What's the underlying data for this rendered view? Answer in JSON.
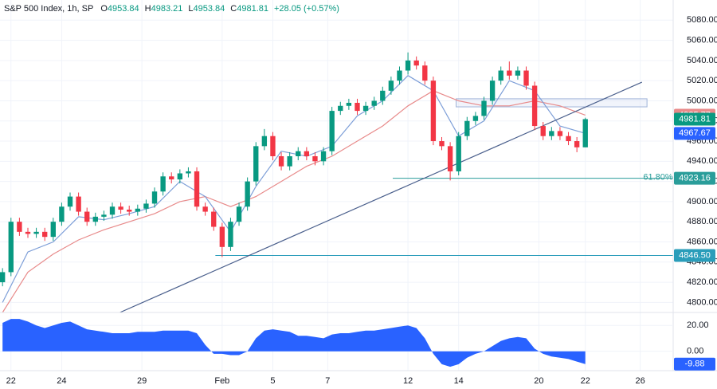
{
  "chart_data": [
    {
      "type": "candlestick",
      "title": "S&P 500 Index, 1h, SP",
      "ohlc_letters": [
        "O",
        "H",
        "L",
        "C"
      ],
      "change": "+28.05 (+0.57%)",
      "up_color": "#089981",
      "down_color": "#f23645",
      "open": [
        4820,
        4830,
        4880,
        4870,
        4868,
        4870,
        4865,
        4880,
        4895,
        4905,
        4890,
        4880,
        4885,
        4887,
        4895,
        4892,
        4890,
        4893,
        4898,
        4910,
        4925,
        4922,
        4928,
        4930,
        4895,
        4890,
        4875,
        4855,
        4880,
        4895,
        4920,
        4955,
        4965,
        4945,
        4935,
        4945,
        4950,
        4945,
        4940,
        4950,
        4990,
        4995,
        4998,
        4990,
        4995,
        5000,
        5010,
        5020,
        5030,
        5040,
        5035,
        5020,
        4960,
        4955,
        4930,
        4965,
        4980,
        4985,
        5000,
        5020,
        5030,
        5025,
        5030,
        5015,
        4975,
        4965,
        4970,
        4965,
        4960,
        4953.84
      ],
      "high": [
        4834,
        4884,
        4884,
        4874,
        4874,
        4874,
        4884,
        4899,
        4909,
        4909,
        4894,
        4889,
        4891,
        4899,
        4899,
        4896,
        4897,
        4902,
        4914,
        4929,
        4929,
        4932,
        4934,
        4934,
        4899,
        4894,
        4879,
        4884,
        4899,
        4924,
        4959,
        4972,
        4969,
        4949,
        4949,
        4954,
        4954,
        4949,
        4954,
        4994,
        4999,
        5002,
        5002,
        4999,
        5004,
        5014,
        5024,
        5034,
        5048,
        5044,
        5039,
        5024,
        4964,
        4959,
        4969,
        4984,
        4989,
        5004,
        5024,
        5034,
        5039,
        5034,
        5034,
        5019,
        4979,
        4974,
        4974,
        4969,
        4964,
        4983.21
      ],
      "low": [
        4816,
        4826,
        4866,
        4864,
        4864,
        4861,
        4861,
        4876,
        4891,
        4886,
        4876,
        4876,
        4881,
        4883,
        4888,
        4886,
        4886,
        4889,
        4894,
        4906,
        4918,
        4918,
        4924,
        4891,
        4886,
        4871,
        4845,
        4851,
        4876,
        4891,
        4916,
        4951,
        4941,
        4931,
        4931,
        4941,
        4941,
        4936,
        4936,
        4946,
        4986,
        4991,
        4986,
        4986,
        4991,
        4996,
        5006,
        5016,
        5026,
        5031,
        5016,
        4956,
        4951,
        4921,
        4926,
        4961,
        4976,
        4981,
        4996,
        5016,
        5021,
        5021,
        5011,
        4971,
        4961,
        4961,
        4961,
        4956,
        4949,
        4953.84
      ],
      "close": [
        4830,
        4880,
        4870,
        4868,
        4870,
        4865,
        4880,
        4895,
        4905,
        4890,
        4880,
        4885,
        4887,
        4895,
        4892,
        4890,
        4893,
        4898,
        4910,
        4925,
        4922,
        4928,
        4930,
        4895,
        4890,
        4875,
        4855,
        4880,
        4895,
        4920,
        4955,
        4965,
        4945,
        4935,
        4945,
        4950,
        4945,
        4940,
        4950,
        4990,
        4995,
        4998,
        4990,
        4995,
        5000,
        5010,
        5020,
        5030,
        5040,
        5035,
        5020,
        4960,
        4955,
        4930,
        4965,
        4980,
        4985,
        5000,
        5020,
        5030,
        5025,
        5030,
        5015,
        4975,
        4965,
        4970,
        4965,
        4960,
        4953.84,
        4981.81
      ],
      "xlim": [
        -0.3,
        79.4
      ],
      "xticks": [
        {
          "value": 1,
          "label": "22"
        },
        {
          "value": 7,
          "label": "24"
        },
        {
          "value": 16.5,
          "label": "29"
        },
        {
          "value": 26,
          "label": "Feb"
        },
        {
          "value": 32,
          "label": "5"
        },
        {
          "value": 38.5,
          "label": "7"
        },
        {
          "value": 48,
          "label": "12"
        },
        {
          "value": 54,
          "label": "14"
        },
        {
          "value": 63.5,
          "label": "20"
        },
        {
          "value": 69,
          "label": "22"
        },
        {
          "value": 75.5,
          "label": "26"
        }
      ],
      "ylim": [
        4790,
        5100
      ],
      "yticks": [
        {
          "value": 4800,
          "label": "4800.00"
        },
        {
          "value": 4820,
          "label": "4820.00"
        },
        {
          "value": 4840,
          "label": "4840.00"
        },
        {
          "value": 4860,
          "label": "4860.00"
        },
        {
          "value": 4880,
          "label": "4880.00"
        },
        {
          "value": 4900,
          "label": "4900.00"
        },
        {
          "value": 4920,
          "label": "4920.00"
        },
        {
          "value": 4940,
          "label": "4940.00"
        },
        {
          "value": 4960,
          "label": "4960.00"
        },
        {
          "value": 4980,
          "label": "4980.00"
        },
        {
          "value": 5000,
          "label": "5000.00"
        },
        {
          "value": 5020,
          "label": "5020.00"
        },
        {
          "value": 5040,
          "label": "5040.00"
        },
        {
          "value": 5060,
          "label": "5060.00"
        },
        {
          "value": 5080,
          "label": "5080.00"
        }
      ],
      "grid": true,
      "lines": [
        {
          "color": "#e88a8a",
          "x": [
            0,
            3,
            6,
            9,
            12,
            15,
            18,
            21,
            24,
            27,
            30,
            33,
            36,
            39,
            42,
            45,
            48,
            51,
            54,
            57,
            60,
            63,
            66,
            69
          ],
          "values": [
            4790,
            4830,
            4848,
            4862,
            4872,
            4880,
            4888,
            4900,
            4905,
            4895,
            4905,
            4920,
            4935,
            4945,
            4960,
            4975,
            4995,
            5010,
            5000,
            4995,
            4995,
            5000,
            4995,
            4985.77
          ]
        },
        {
          "color": "#7e9fd8",
          "tag_color": "#2962ff",
          "x": [
            0,
            3,
            6,
            9,
            12,
            15,
            18,
            21,
            24,
            27,
            30,
            33,
            36,
            39,
            42,
            45,
            48,
            51,
            54,
            57,
            60,
            63,
            66,
            69
          ],
          "values": [
            4800,
            4850,
            4860,
            4885,
            4882,
            4888,
            4895,
            4920,
            4905,
            4870,
            4915,
            4950,
            4945,
            4955,
            4985,
            5000,
            5025,
            5010,
            4965,
            4980,
            5020,
            5010,
            4975,
            4967.67
          ]
        }
      ],
      "trendline": {
        "color": "#4a5f8c",
        "x": [
          13.9,
          75.7
        ],
        "y": [
          4790,
          5018.5
        ]
      },
      "zone": {
        "color": "#9fb3d9",
        "x": [
          53.7,
          76.3
        ],
        "y": [
          4994,
          5002
        ]
      },
      "levels": [
        {
          "price": 4923.16,
          "start": 46.2,
          "note": "61.80%",
          "color": "#2a9d9a"
        },
        {
          "price": {
            "value": 4846.5,
            "label": "4846.50"
          },
          "start": 25.2,
          "color": "#2a9dba"
        }
      ]
    },
    {
      "type": "area",
      "color": "#2962ff",
      "xlim": [
        -0.3,
        79.4
      ],
      "ylim": [
        -15,
        30
      ],
      "yticks": [
        {
          "value": 0,
          "label": "0.00"
        },
        {
          "value": 20,
          "label": "20.00"
        }
      ],
      "values": [
        22,
        25,
        25,
        23,
        20,
        18,
        20,
        22,
        23,
        20,
        17,
        16,
        15,
        14,
        14,
        14,
        15,
        15,
        15,
        16,
        16,
        16,
        16,
        14,
        5,
        -2,
        -2,
        -3,
        -3,
        0,
        10,
        16,
        17,
        16,
        15,
        12,
        12,
        11,
        10,
        13,
        14,
        14,
        15,
        16,
        16,
        17,
        18,
        19,
        20,
        18,
        10,
        -2,
        -10,
        -12,
        -10,
        -5,
        -2,
        0,
        4,
        8,
        10,
        11,
        10,
        2,
        -2,
        -4,
        -5,
        -6,
        -8,
        -9.88
      ]
    }
  ]
}
